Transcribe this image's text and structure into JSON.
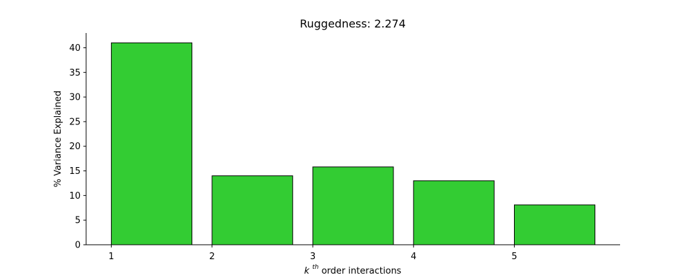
{
  "chart_data": {
    "type": "bar",
    "title": "Ruggedness: 2.274",
    "xlabel": {
      "base": "k",
      "superscript": "th",
      "text": " order interactions"
    },
    "ylabel": "% Variance Explained",
    "categories": [
      "1",
      "2",
      "3",
      "4",
      "5"
    ],
    "x": [
      1,
      2,
      3,
      4,
      5
    ],
    "values": [
      41.0,
      14.0,
      15.8,
      13.0,
      8.1
    ],
    "bar_width": 0.8,
    "bar_align": "edge",
    "xlim": [
      0.75,
      6.05
    ],
    "ylim": [
      0,
      43
    ],
    "xticks": [
      1,
      2,
      3,
      4,
      5
    ],
    "yticks": [
      0,
      5,
      10,
      15,
      20,
      25,
      30,
      35,
      40
    ],
    "grid": false,
    "spines": [
      "left",
      "bottom"
    ],
    "colors": {
      "bar_fill": "#33cc33",
      "bar_edge": "#000000"
    }
  }
}
